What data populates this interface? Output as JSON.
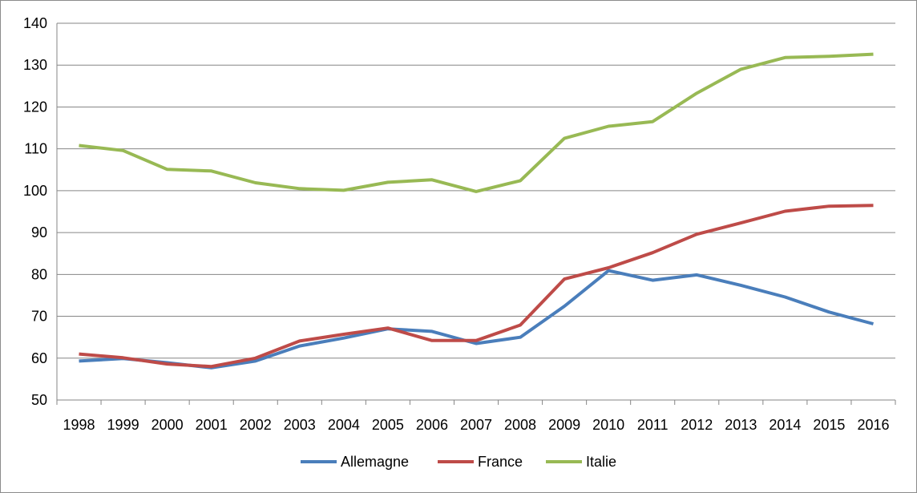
{
  "chart_data": {
    "type": "line",
    "title": "",
    "xlabel": "",
    "ylabel": "",
    "x": [
      "1998",
      "1999",
      "2000",
      "2001",
      "2002",
      "2003",
      "2004",
      "2005",
      "2006",
      "2007",
      "2008",
      "2009",
      "2010",
      "2011",
      "2012",
      "2013",
      "2014",
      "2015",
      "2016"
    ],
    "ylim": [
      50,
      140
    ],
    "yticks": [
      50,
      60,
      70,
      80,
      90,
      100,
      110,
      120,
      130,
      140
    ],
    "grid": "horizontal",
    "legend_position": "bottom",
    "series": [
      {
        "name": "Allemagne",
        "color": "#4a7ebb",
        "values": [
          59.3,
          59.9,
          58.9,
          57.7,
          59.3,
          62.9,
          64.8,
          67.0,
          66.4,
          63.5,
          65.0,
          72.4,
          80.9,
          78.6,
          79.9,
          77.4,
          74.6,
          71.0,
          68.2
        ]
      },
      {
        "name": "France",
        "color": "#be4b48",
        "values": [
          61.0,
          60.1,
          58.6,
          58.0,
          60.0,
          64.1,
          65.7,
          67.2,
          64.2,
          64.2,
          67.9,
          78.9,
          81.6,
          85.2,
          89.6,
          92.3,
          95.1,
          96.3,
          96.5
        ]
      },
      {
        "name": "Italie",
        "color": "#98b954",
        "values": [
          110.8,
          109.6,
          105.1,
          104.7,
          101.9,
          100.5,
          100.1,
          102.0,
          102.6,
          99.8,
          102.4,
          112.5,
          115.4,
          116.5,
          123.3,
          129.0,
          131.8,
          132.1,
          132.6
        ]
      }
    ]
  }
}
